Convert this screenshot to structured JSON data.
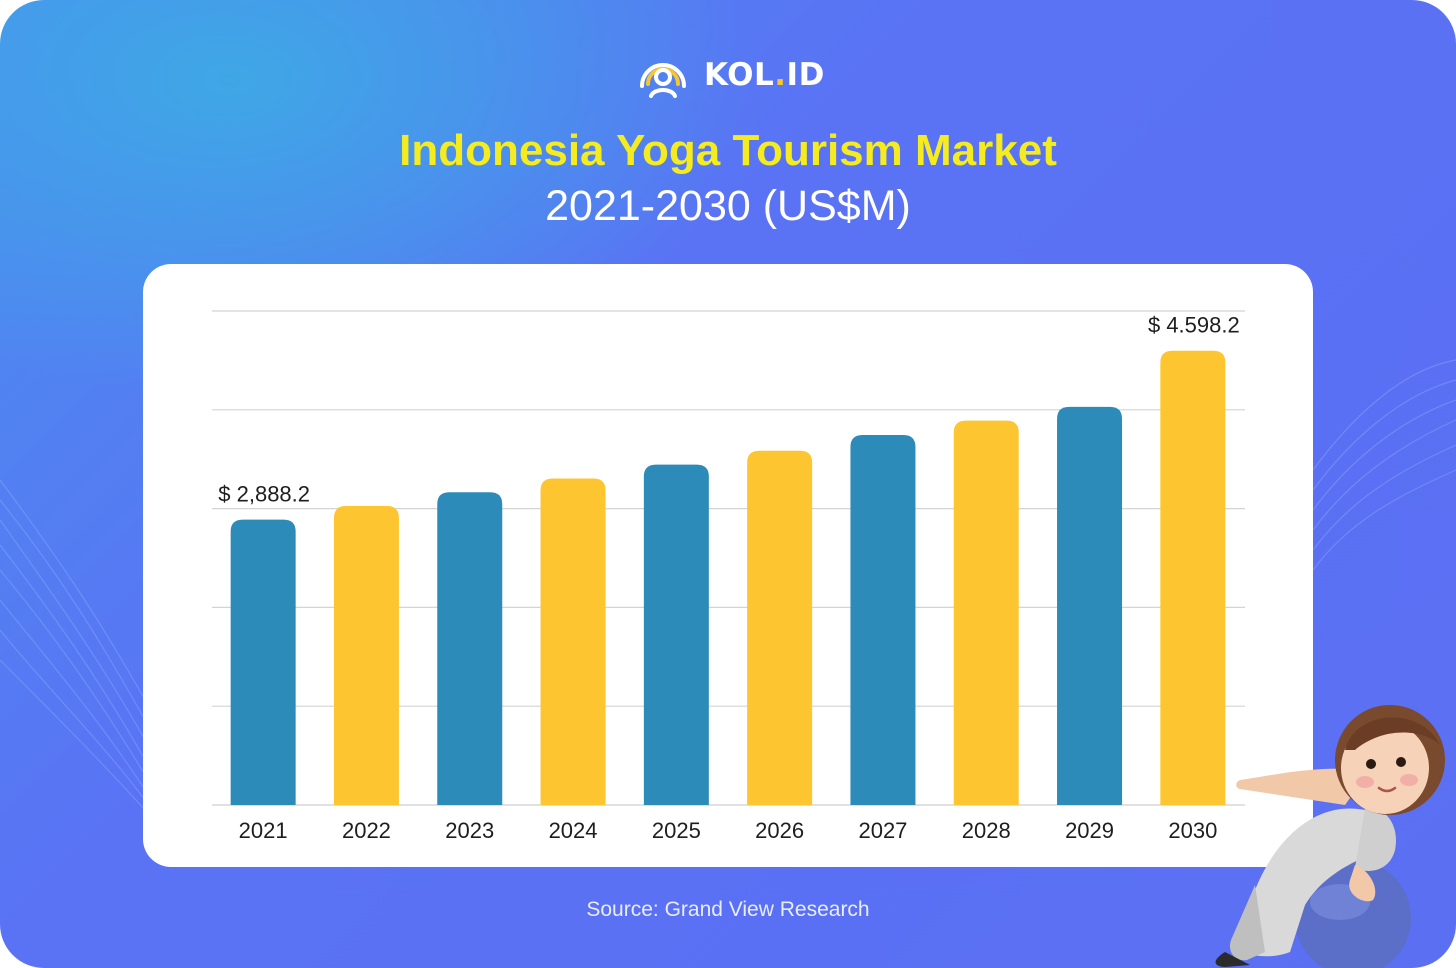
{
  "brand": {
    "name_main": "KOL",
    "name_dot": ".",
    "name_suffix": "ID"
  },
  "title": "Indonesia Yoga Tourism Market",
  "subtitle": "2021-2030 (US$M)",
  "source": "Source: Grand View Research",
  "colors": {
    "blue_bar": "#2d8bb9",
    "yellow_bar": "#fdc52f",
    "title": "#f5ec1f"
  },
  "chart_data": {
    "type": "bar",
    "categories": [
      "2021",
      "2022",
      "2023",
      "2024",
      "2025",
      "2026",
      "2027",
      "2028",
      "2029",
      "2030"
    ],
    "values": [
      2888.2,
      3026,
      3165,
      3305,
      3445,
      3585,
      3745,
      3890,
      4030,
      4598.2
    ],
    "data_labels": [
      {
        "index": 0,
        "text": "$ 2,888.2"
      },
      {
        "index": 9,
        "text": "$ 4.598.2"
      }
    ],
    "bar_colors": [
      "#2d8bb9",
      "#fdc52f",
      "#2d8bb9",
      "#fdc52f",
      "#2d8bb9",
      "#fdc52f",
      "#2d8bb9",
      "#fdc52f",
      "#2d8bb9",
      "#fdc52f"
    ],
    "ylim": [
      0,
      5000
    ],
    "grid": true,
    "gridlines": [
      1000,
      2000,
      3000,
      4000,
      5000
    ]
  }
}
